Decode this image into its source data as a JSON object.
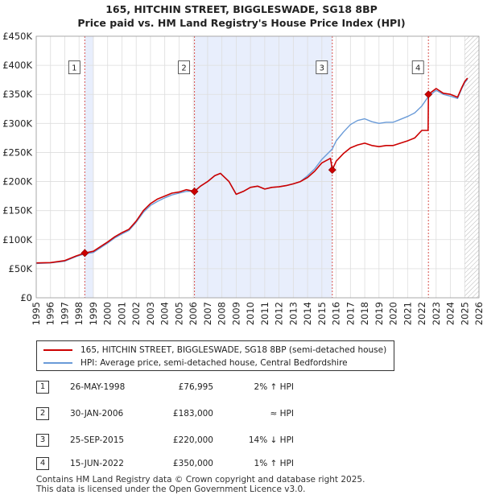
{
  "chart_data": {
    "type": "line",
    "title": "165, HITCHIN STREET, BIGGLESWADE, SG18 8BP",
    "subtitle": "Price paid vs. HM Land Registry's House Price Index (HPI)",
    "xlim": [
      1995,
      2026
    ],
    "ylim": [
      0,
      450000
    ],
    "x_ticks": [
      "1995",
      "1996",
      "1997",
      "1998",
      "1999",
      "2000",
      "2001",
      "2002",
      "2003",
      "2004",
      "2005",
      "2006",
      "2007",
      "2008",
      "2009",
      "2010",
      "2011",
      "2012",
      "2013",
      "2014",
      "2015",
      "2016",
      "2017",
      "2018",
      "2019",
      "2020",
      "2021",
      "2022",
      "2023",
      "2024",
      "2025",
      "2026"
    ],
    "y_ticks": [
      {
        "value": 0,
        "label": "£0"
      },
      {
        "value": 50000,
        "label": "£50K"
      },
      {
        "value": 100000,
        "label": "£100K"
      },
      {
        "value": 150000,
        "label": "£150K"
      },
      {
        "value": 200000,
        "label": "£200K"
      },
      {
        "value": 250000,
        "label": "£250K"
      },
      {
        "value": 300000,
        "label": "£300K"
      },
      {
        "value": 350000,
        "label": "£350K"
      },
      {
        "value": 400000,
        "label": "£400K"
      },
      {
        "value": 450000,
        "label": "£450K"
      }
    ],
    "colors": {
      "price": "#cc0000",
      "hpi": "#6a9bd8",
      "shade": "#e8eefc",
      "marker_line": "#d9534f"
    },
    "shaded_periods": [
      [
        1998.4,
        1999.0
      ],
      [
        2006.08,
        2015.73
      ]
    ],
    "future_hatch_from": 2025.0,
    "series": [
      {
        "name": "165, HITCHIN STREET, BIGGLESWADE, SG18 8BP (semi-detached house)",
        "key": "price",
        "points": [
          [
            1995.0,
            60000
          ],
          [
            1996.0,
            60500
          ],
          [
            1997.0,
            64000
          ],
          [
            1997.8,
            72000
          ],
          [
            1998.4,
            76995
          ],
          [
            1999.0,
            80000
          ],
          [
            1999.5,
            88000
          ],
          [
            2000.0,
            96000
          ],
          [
            2000.5,
            105000
          ],
          [
            2001.0,
            112000
          ],
          [
            2001.5,
            118000
          ],
          [
            2002.0,
            132000
          ],
          [
            2002.5,
            150000
          ],
          [
            2003.0,
            162000
          ],
          [
            2003.5,
            170000
          ],
          [
            2004.0,
            175000
          ],
          [
            2004.5,
            180000
          ],
          [
            2005.0,
            182000
          ],
          [
            2005.5,
            186000
          ],
          [
            2006.08,
            183000
          ],
          [
            2006.5,
            192000
          ],
          [
            2007.0,
            200000
          ],
          [
            2007.5,
            210000
          ],
          [
            2007.9,
            214000
          ],
          [
            2008.5,
            200000
          ],
          [
            2009.0,
            178000
          ],
          [
            2009.5,
            183000
          ],
          [
            2010.0,
            190000
          ],
          [
            2010.5,
            192000
          ],
          [
            2011.0,
            187000
          ],
          [
            2011.5,
            190000
          ],
          [
            2012.0,
            191000
          ],
          [
            2012.5,
            193000
          ],
          [
            2013.0,
            196000
          ],
          [
            2013.5,
            200000
          ],
          [
            2014.0,
            207000
          ],
          [
            2014.5,
            218000
          ],
          [
            2015.0,
            232000
          ],
          [
            2015.6,
            240000
          ],
          [
            2015.73,
            220000
          ],
          [
            2016.0,
            235000
          ],
          [
            2016.5,
            248000
          ],
          [
            2017.0,
            258000
          ],
          [
            2017.5,
            263000
          ],
          [
            2018.0,
            266000
          ],
          [
            2018.5,
            262000
          ],
          [
            2019.0,
            260000
          ],
          [
            2019.5,
            262000
          ],
          [
            2020.0,
            262000
          ],
          [
            2020.5,
            266000
          ],
          [
            2021.0,
            270000
          ],
          [
            2021.5,
            275000
          ],
          [
            2022.0,
            288000
          ],
          [
            2022.44,
            288000
          ],
          [
            2022.46,
            350000
          ],
          [
            2023.0,
            360000
          ],
          [
            2023.5,
            352000
          ],
          [
            2024.0,
            350000
          ],
          [
            2024.5,
            345000
          ],
          [
            2024.8,
            362000
          ],
          [
            2025.0,
            372000
          ],
          [
            2025.2,
            378000
          ]
        ]
      },
      {
        "name": "HPI: Average price, semi-detached house, Central Bedfordshire",
        "key": "hpi",
        "points": [
          [
            1995.0,
            59000
          ],
          [
            1996.0,
            60000
          ],
          [
            1997.0,
            63000
          ],
          [
            1997.8,
            71000
          ],
          [
            1998.4,
            75500
          ],
          [
            1999.0,
            78000
          ],
          [
            1999.5,
            86000
          ],
          [
            2000.0,
            94000
          ],
          [
            2000.5,
            103000
          ],
          [
            2001.0,
            110000
          ],
          [
            2001.5,
            116000
          ],
          [
            2002.0,
            130000
          ],
          [
            2002.5,
            147000
          ],
          [
            2003.0,
            159000
          ],
          [
            2003.5,
            166000
          ],
          [
            2004.0,
            172000
          ],
          [
            2004.5,
            177000
          ],
          [
            2005.0,
            180000
          ],
          [
            2005.5,
            183000
          ],
          [
            2006.08,
            183500
          ],
          [
            2006.5,
            192000
          ],
          [
            2007.0,
            200000
          ],
          [
            2007.5,
            210000
          ],
          [
            2007.9,
            214000
          ],
          [
            2008.5,
            200000
          ],
          [
            2009.0,
            178000
          ],
          [
            2009.5,
            183000
          ],
          [
            2010.0,
            190000
          ],
          [
            2010.5,
            192000
          ],
          [
            2011.0,
            187000
          ],
          [
            2011.5,
            190000
          ],
          [
            2012.0,
            191000
          ],
          [
            2012.5,
            193000
          ],
          [
            2013.0,
            196000
          ],
          [
            2013.5,
            200000
          ],
          [
            2014.0,
            210000
          ],
          [
            2014.5,
            222000
          ],
          [
            2015.0,
            238000
          ],
          [
            2015.73,
            256000
          ],
          [
            2016.0,
            270000
          ],
          [
            2016.5,
            285000
          ],
          [
            2017.0,
            298000
          ],
          [
            2017.5,
            305000
          ],
          [
            2018.0,
            308000
          ],
          [
            2018.5,
            303000
          ],
          [
            2019.0,
            300000
          ],
          [
            2019.5,
            302000
          ],
          [
            2020.0,
            302000
          ],
          [
            2020.5,
            307000
          ],
          [
            2021.0,
            312000
          ],
          [
            2021.5,
            318000
          ],
          [
            2022.0,
            330000
          ],
          [
            2022.46,
            346500
          ],
          [
            2023.0,
            357000
          ],
          [
            2023.5,
            350000
          ],
          [
            2024.0,
            347000
          ],
          [
            2024.5,
            343000
          ],
          [
            2024.8,
            360000
          ],
          [
            2025.0,
            370000
          ],
          [
            2025.2,
            376000
          ]
        ]
      }
    ],
    "sales": [
      {
        "id": "1",
        "x": 1998.4,
        "value": 76995
      },
      {
        "id": "2",
        "x": 2006.08,
        "value": 183000
      },
      {
        "id": "3",
        "x": 2015.73,
        "value": 220000
      },
      {
        "id": "4",
        "x": 2022.46,
        "value": 350000
      }
    ],
    "marker_label_value": 395000
  },
  "legend": {
    "price_label": "165, HITCHIN STREET, BIGGLESWADE, SG18 8BP (semi-detached house)",
    "hpi_label": "HPI: Average price, semi-detached house, Central Bedfordshire"
  },
  "transactions": [
    {
      "num": "1",
      "date": "26-MAY-1998",
      "price": "£76,995",
      "hpi": "2% ↑ HPI"
    },
    {
      "num": "2",
      "date": "30-JAN-2006",
      "price": "£183,000",
      "hpi": "≈ HPI"
    },
    {
      "num": "3",
      "date": "25-SEP-2015",
      "price": "£220,000",
      "hpi": "14% ↓ HPI"
    },
    {
      "num": "4",
      "date": "15-JUN-2022",
      "price": "£350,000",
      "hpi": "1% ↑ HPI"
    }
  ],
  "footer": {
    "line1": "Contains HM Land Registry data © Crown copyright and database right 2025.",
    "line2": "This data is licensed under the Open Government Licence v3.0."
  }
}
